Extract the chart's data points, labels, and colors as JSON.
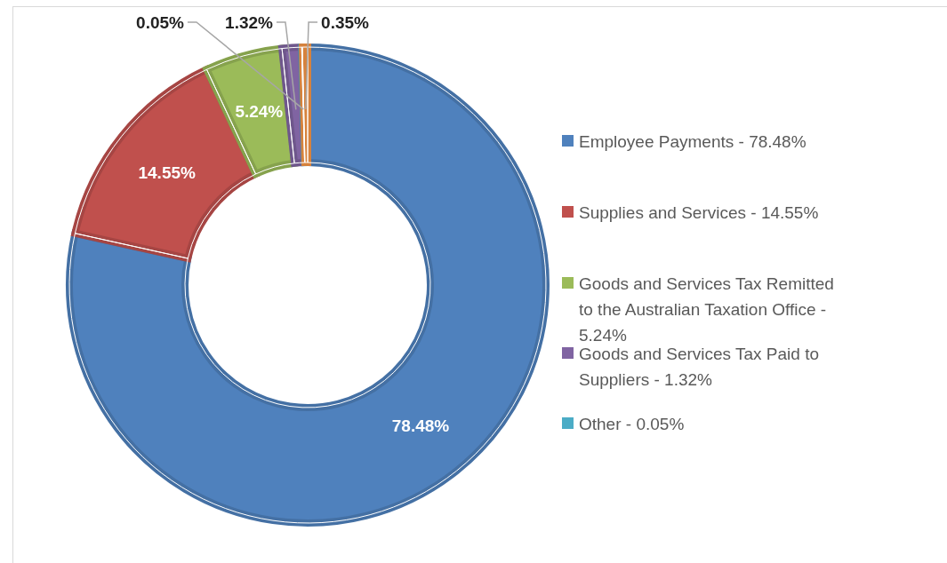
{
  "chart_data": {
    "type": "donut",
    "categories": [
      "Employee Payments - 78.48%",
      "Supplies and Services - 14.55%",
      "Goods and Services Tax Remitted to the Australian Taxation Office - 5.24%",
      "Goods and Services Tax Paid to Suppliers - 1.32%",
      "Other - 0.05%",
      null
    ],
    "values": [
      78.48,
      14.55,
      5.24,
      1.32,
      0.05,
      0.35
    ],
    "colors": [
      "#4f81bd",
      "#c0504d",
      "#9bbb59",
      "#8064a2",
      "#4bacc6",
      "#f79646"
    ],
    "value_labels": [
      "78.48%",
      "14.55%",
      "5.24%",
      "1.32%",
      "0.05%",
      "0.35%"
    ],
    "legend": "right"
  }
}
